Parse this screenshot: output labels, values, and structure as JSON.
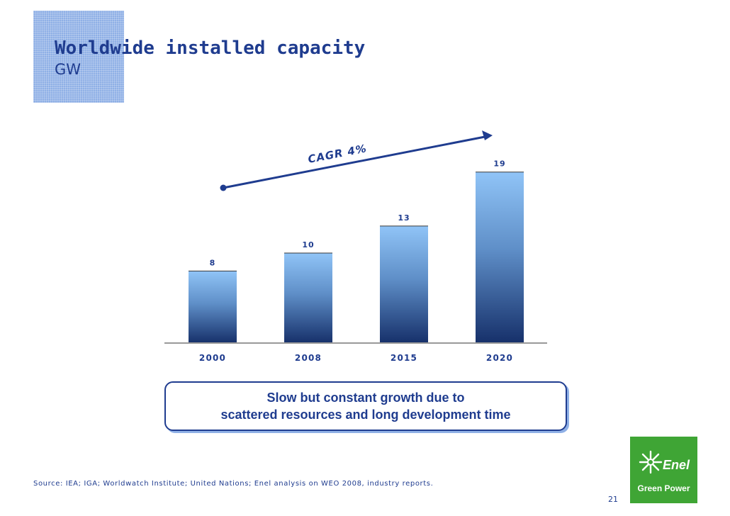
{
  "slide": {
    "title": "Worldwide installed capacity",
    "subtitle": "GW",
    "callout_lines": [
      "Slow but constant growth due to",
      "scattered resources and long development time"
    ],
    "source": "Source: IEA; IGA; Worldwatch Institute; United Nations; Enel analysis on WEO 2008, industry reports.",
    "page_number": "21",
    "logo": {
      "name": "Enel",
      "tagline": "Green Power",
      "icon": "enel-sun-logo-icon",
      "background": "#3fa535"
    }
  },
  "chart_data": {
    "type": "bar",
    "categories": [
      "2000",
      "2008",
      "2015",
      "2020"
    ],
    "values": [
      8,
      10,
      13,
      19
    ],
    "data_labels": [
      "8",
      "10",
      "13",
      "19"
    ],
    "ylim": [
      0,
      20
    ],
    "grid": false,
    "legend": "none",
    "bar_gradient": [
      "#90c4f7",
      "#16306a"
    ],
    "annotation": {
      "text": "CAGR 4%",
      "arrow_color": "#1f3c8f"
    },
    "text_color": "#1f3c8f"
  }
}
